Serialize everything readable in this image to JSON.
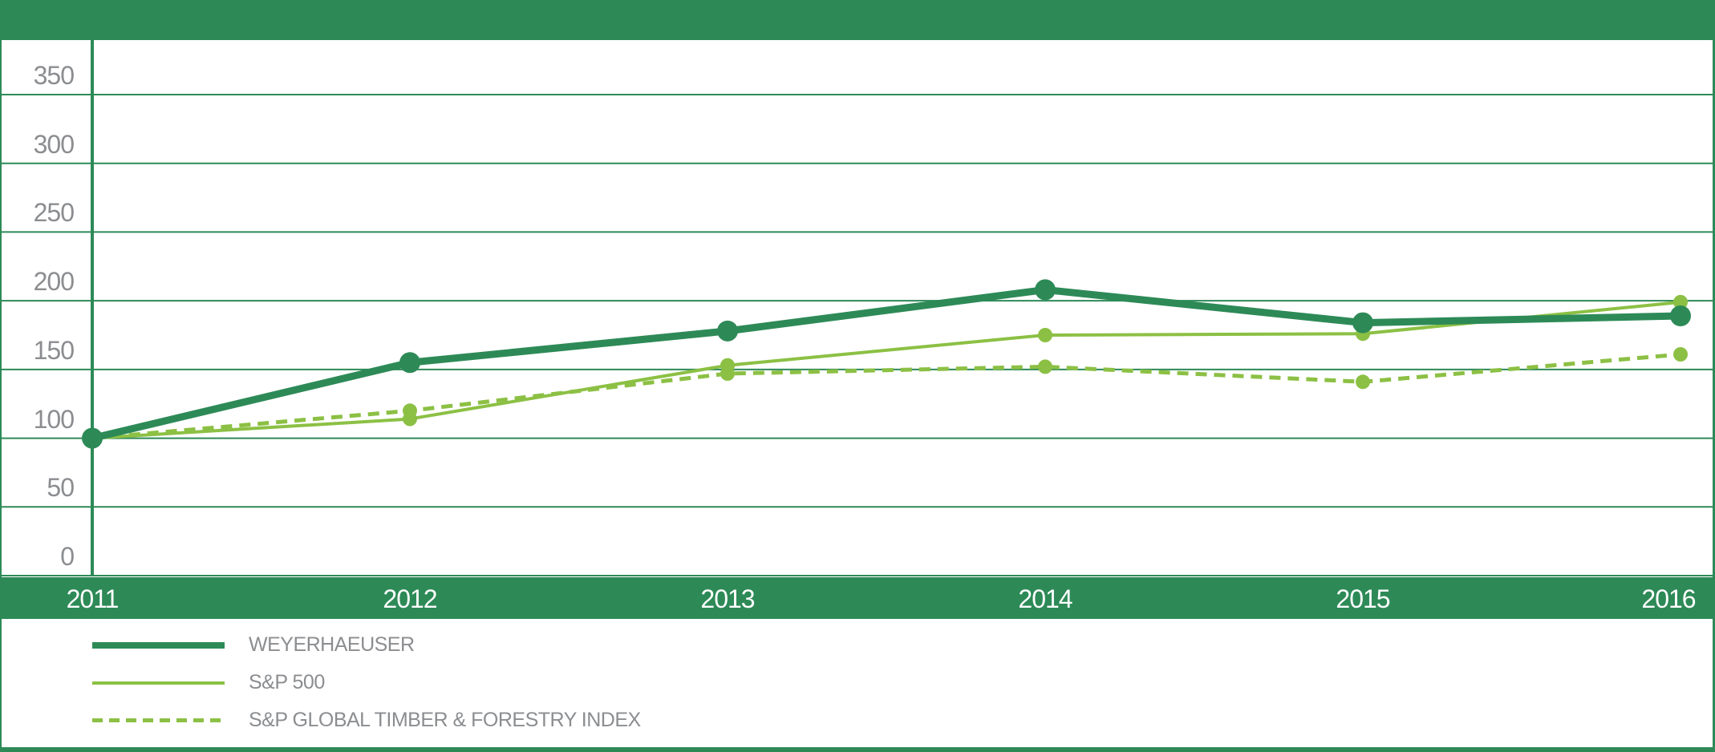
{
  "colors": {
    "dark_green": "#2d8a57",
    "light_green": "#8cc044",
    "tick_label_gray": "#8b8d90",
    "legend_text_gray": "#8b8d90",
    "year_label_white": "#ffffff",
    "background": "#ffffff"
  },
  "chart_data": {
    "type": "line",
    "title": "",
    "xlabel": "",
    "ylabel": "",
    "categories": [
      "2011",
      "2012",
      "2013",
      "2014",
      "2015",
      "2016"
    ],
    "series": [
      {
        "key": "weyerhaeuser",
        "name": "WEYERHAEUSER",
        "values": [
          100,
          155,
          178,
          208,
          184,
          189
        ],
        "color": "dark_green",
        "style": "solid-thick"
      },
      {
        "key": "sp500",
        "name": "S&P 500",
        "values": [
          100,
          114,
          153,
          175,
          176,
          199
        ],
        "color": "light_green",
        "style": "solid-thin"
      },
      {
        "key": "timber-forestry-index",
        "name": "S&P GLOBAL TIMBER & FORESTRY INDEX",
        "values": [
          100,
          120,
          147,
          152,
          141,
          161
        ],
        "color": "light_green",
        "style": "dashed"
      }
    ],
    "yticks": [
      0,
      50,
      100,
      150,
      200,
      250,
      300,
      350
    ],
    "ylim": [
      0,
      390
    ],
    "grid": "horizontal",
    "legend_position": "bottom-left",
    "index_base": 100
  }
}
